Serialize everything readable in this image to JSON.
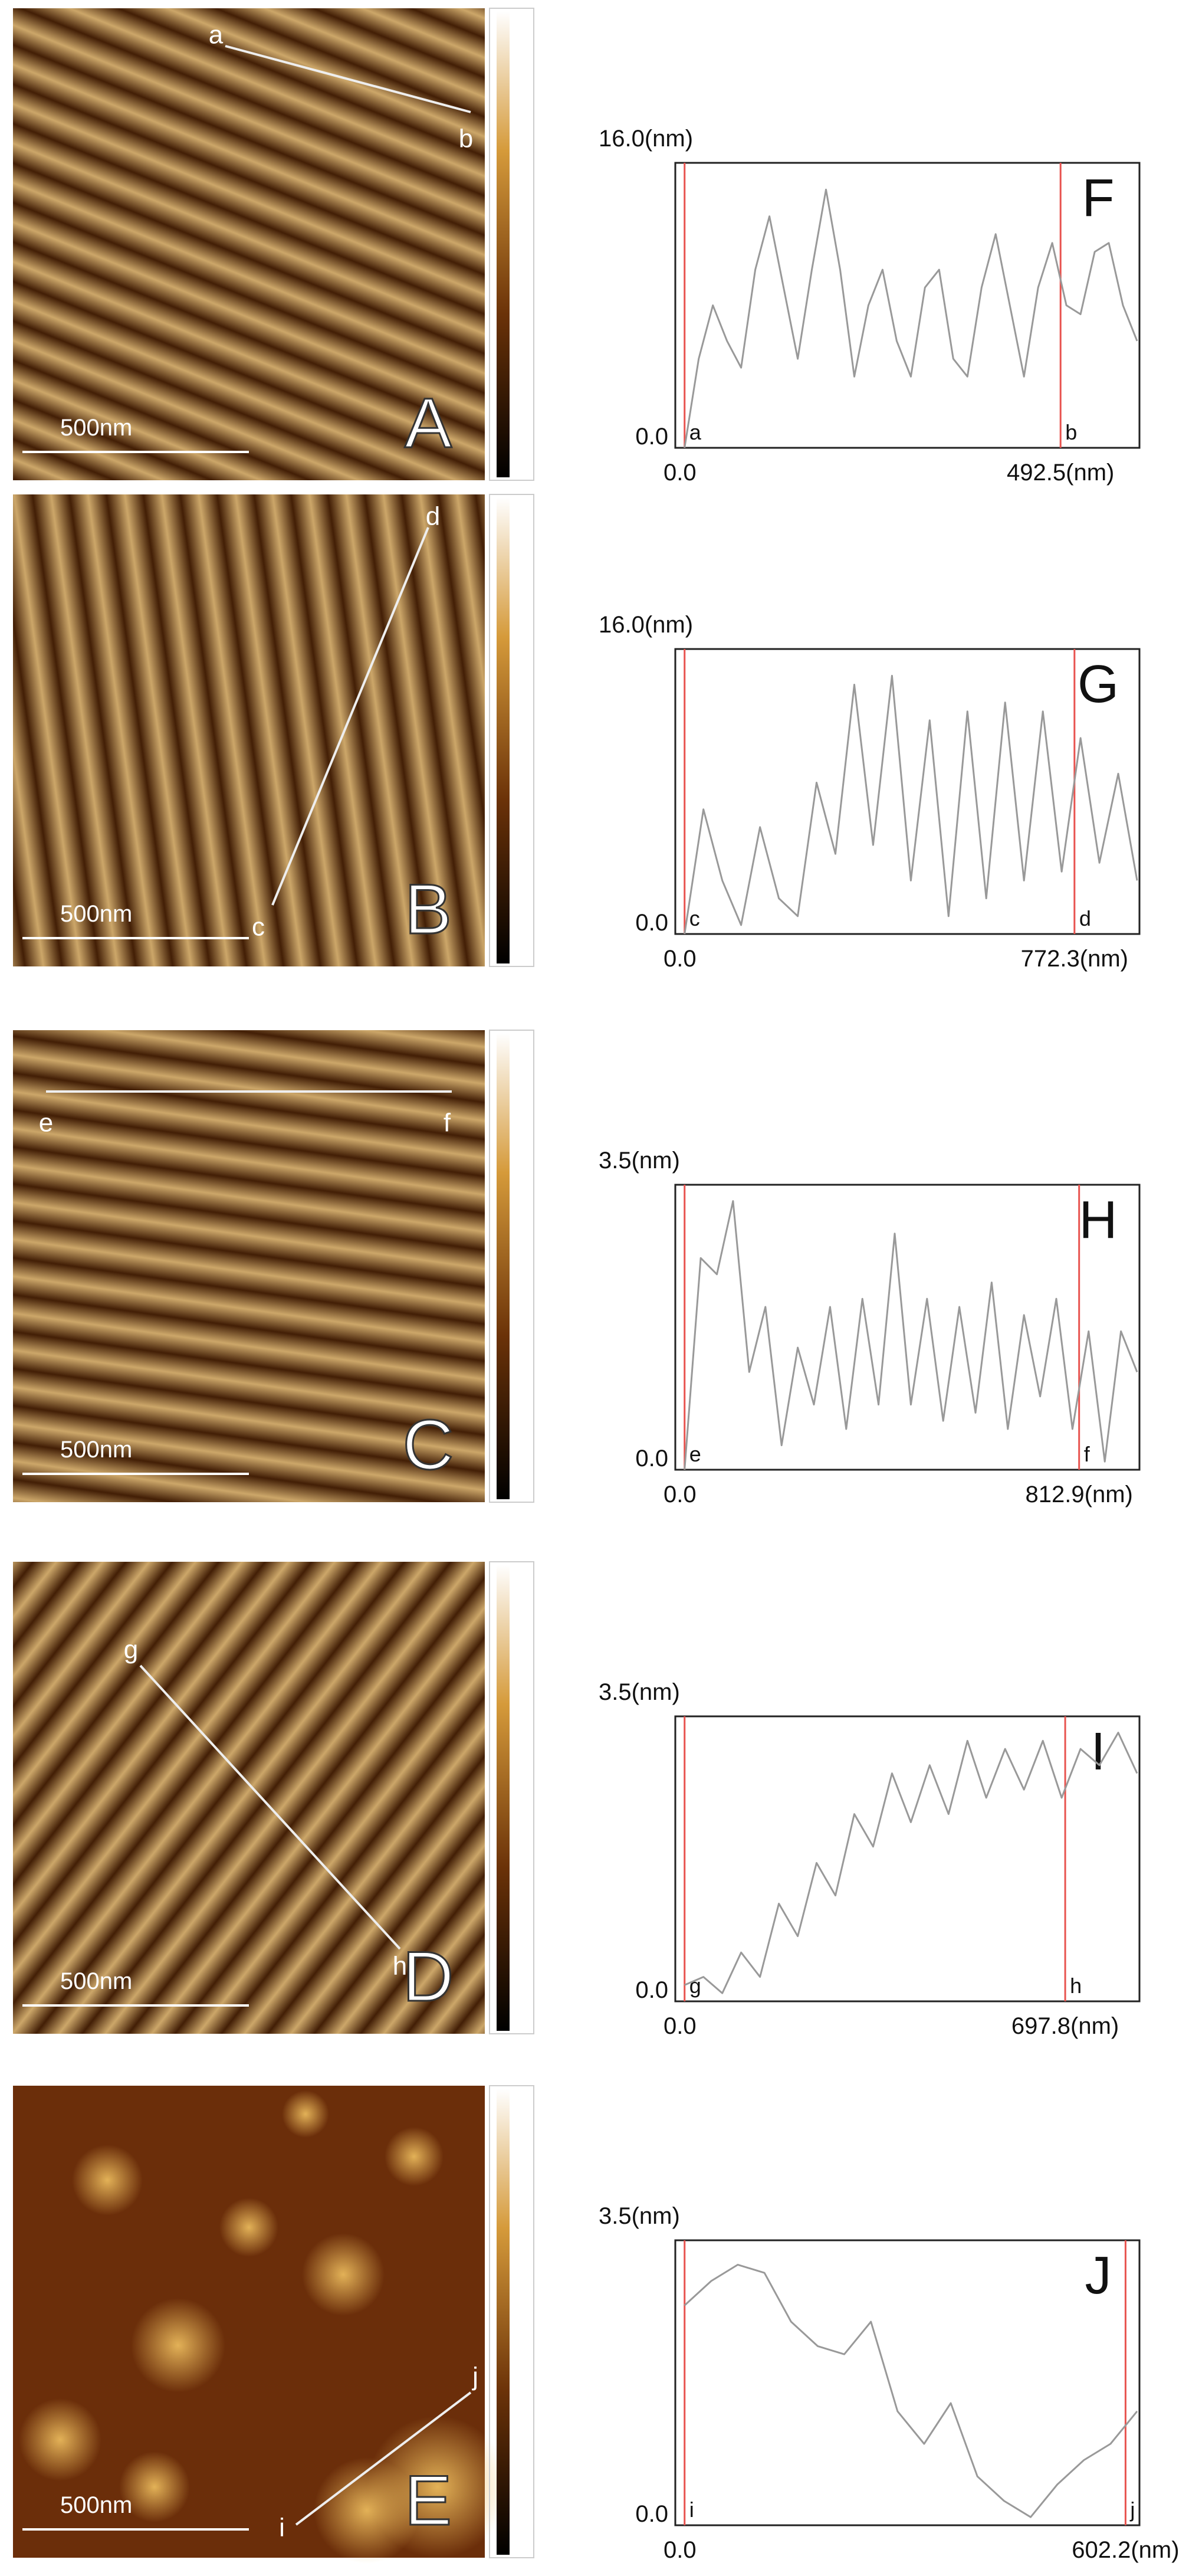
{
  "panels": [
    {
      "image_label": "A",
      "scale_bar": "500nm",
      "start": "a",
      "end": "b",
      "profile": {
        "type": "line",
        "label": "F",
        "ylim": [
          0,
          16
        ],
        "yticks": [
          {
            "value": 0,
            "label": "0.0"
          },
          {
            "value": 16,
            "label": "16.0(nm)"
          }
        ],
        "xticks": [
          {
            "value": 0,
            "label": "0.0"
          },
          {
            "value": 492.5,
            "label": "492.5(nm)"
          }
        ],
        "values": [
          0,
          5,
          8,
          6,
          4.5,
          10,
          13,
          9,
          5,
          10,
          14.5,
          10,
          4,
          8,
          10,
          6,
          4,
          9,
          10,
          5,
          4,
          9,
          12,
          8,
          4,
          9,
          11.5,
          8,
          7.5,
          11,
          11.5,
          8,
          6
        ]
      }
    },
    {
      "image_label": "B",
      "scale_bar": "500nm",
      "start": "c",
      "end": "d",
      "profile": {
        "type": "line",
        "label": "G",
        "ylim": [
          0,
          16
        ],
        "yticks": [
          {
            "value": 0,
            "label": "0.0"
          },
          {
            "value": 16,
            "label": "16.0(nm)"
          }
        ],
        "xticks": [
          {
            "value": 0,
            "label": "0.0"
          },
          {
            "value": 772.3,
            "label": "772.3(nm)"
          }
        ],
        "values": [
          0,
          7,
          3,
          0.5,
          6,
          2,
          1,
          8.5,
          4.5,
          14,
          5,
          14.5,
          3,
          12,
          1,
          12.5,
          2,
          13,
          3,
          12.5,
          3.5,
          11,
          4,
          9,
          3
        ]
      }
    },
    {
      "image_label": "C",
      "scale_bar": "500nm",
      "start": "e",
      "end": "f",
      "profile": {
        "type": "line",
        "label": "H",
        "ylim": [
          0,
          3.5
        ],
        "yticks": [
          {
            "value": 0,
            "label": "0.0"
          },
          {
            "value": 3.5,
            "label": "3.5(nm)"
          }
        ],
        "xticks": [
          {
            "value": 0,
            "label": "0.0"
          },
          {
            "value": 812.9,
            "label": "812.9(nm)"
          }
        ],
        "values": [
          0,
          2.6,
          2.4,
          3.3,
          1.2,
          2,
          0.3,
          1.5,
          0.8,
          2,
          0.5,
          2.1,
          0.8,
          2.9,
          0.8,
          2.1,
          0.6,
          2,
          0.7,
          2.3,
          0.5,
          1.9,
          0.9,
          2.1,
          0.5,
          1.7,
          0.1,
          1.7,
          1.2
        ]
      }
    },
    {
      "image_label": "D",
      "scale_bar": "500nm",
      "start": "g",
      "end": "h",
      "profile": {
        "type": "line",
        "label": "I",
        "ylim": [
          0,
          3.5
        ],
        "yticks": [
          {
            "value": 0,
            "label": "0.0"
          },
          {
            "value": 3.5,
            "label": "3.5(nm)"
          }
        ],
        "xticks": [
          {
            "value": 0,
            "label": "0.0"
          },
          {
            "value": 697.8,
            "label": "697.8(nm)"
          }
        ],
        "values": [
          0.2,
          0.3,
          0.1,
          0.6,
          0.3,
          1.2,
          0.8,
          1.7,
          1.3,
          2.3,
          1.9,
          2.8,
          2.2,
          2.9,
          2.3,
          3.2,
          2.5,
          3.1,
          2.6,
          3.2,
          2.5,
          3.1,
          2.9,
          3.3,
          2.8
        ]
      }
    },
    {
      "image_label": "E",
      "scale_bar": "500nm",
      "start": "i",
      "end": "j",
      "profile": {
        "type": "line",
        "label": "J",
        "ylim": [
          0,
          3.5
        ],
        "yticks": [
          {
            "value": 0,
            "label": "0.0"
          },
          {
            "value": 3.5,
            "label": "3.5(nm)"
          }
        ],
        "xticks": [
          {
            "value": 0,
            "label": "0.0"
          },
          {
            "value": 602.2,
            "label": "602.2(nm)"
          }
        ],
        "values": [
          2.7,
          3,
          3.2,
          3.1,
          2.5,
          2.2,
          2.1,
          2.5,
          1.4,
          1,
          1.5,
          0.6,
          0.3,
          0.1,
          0.5,
          0.8,
          1,
          1.4
        ]
      }
    }
  ]
}
